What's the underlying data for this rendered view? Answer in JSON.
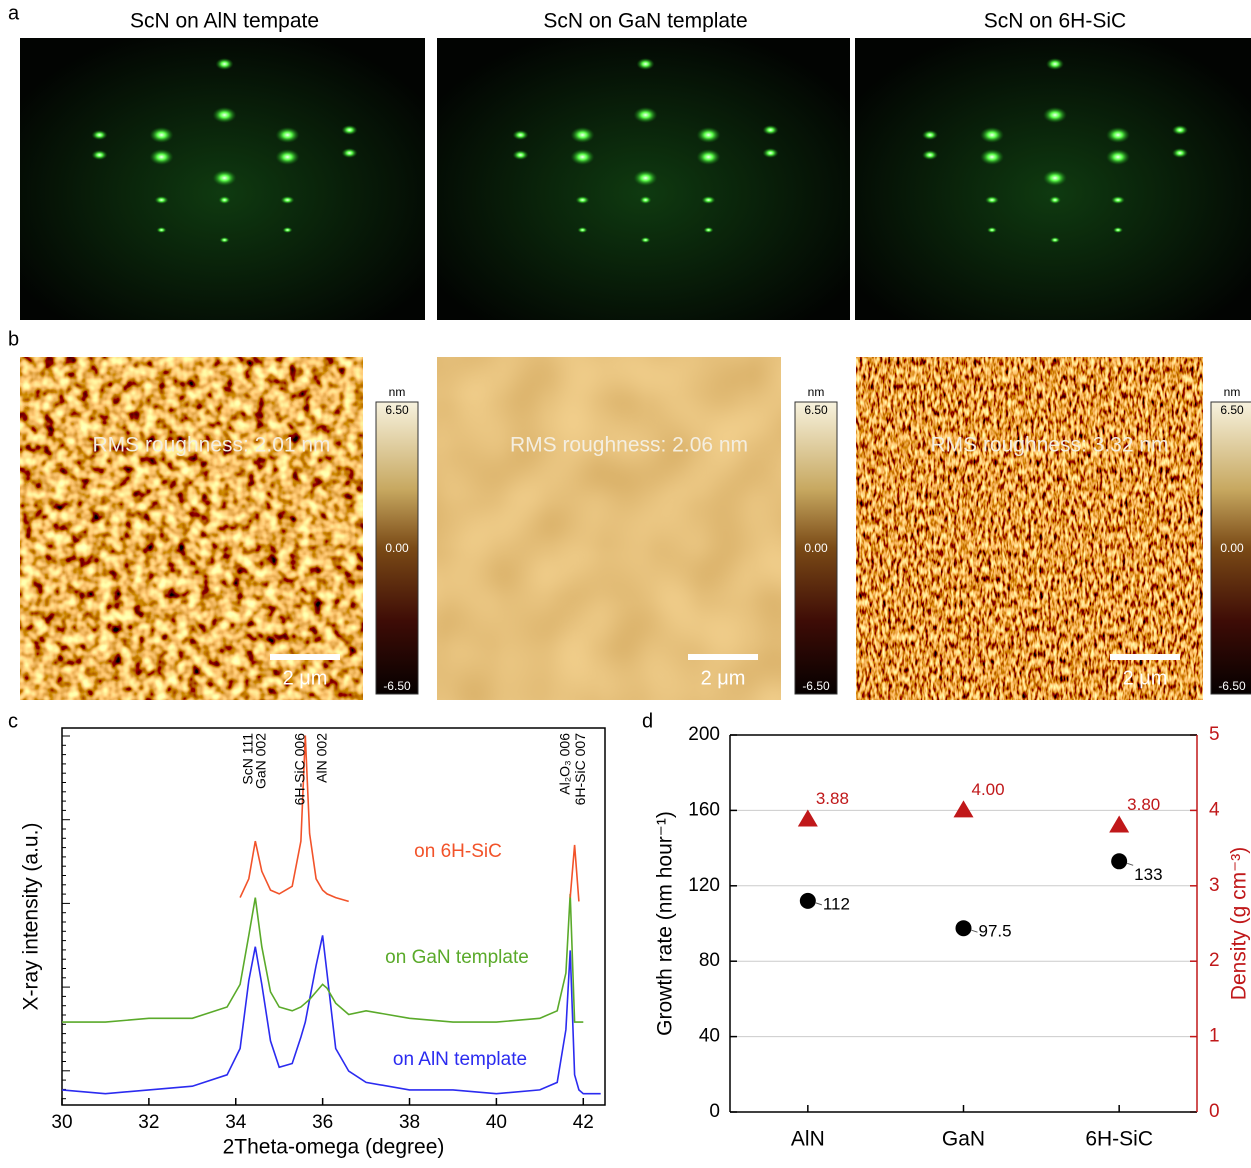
{
  "panels": {
    "a": {
      "label": "a",
      "titles": [
        "ScN on AlN tempate",
        "ScN on GaN template",
        "ScN on 6H-SiC"
      ]
    },
    "b": {
      "label": "b",
      "images": [
        {
          "rms": "RMS roughness: 2.01 nm",
          "scale": "2 μm"
        },
        {
          "rms": "RMS roughness: 2.06 nm",
          "scale": "2 μm"
        },
        {
          "rms": "RMS roughness: 3.32 nm",
          "scale": "2 μm"
        }
      ],
      "colorbar": {
        "unit": "nm",
        "ticks": [
          "6.50",
          "0.00",
          "-6.50"
        ]
      }
    }
  },
  "chart_data": [
    {
      "type": "line",
      "label": "c",
      "xlabel": "2Theta-omega (degree)",
      "ylabel": "X-ray intensity (a.u.)",
      "xlim": [
        30,
        42.5
      ],
      "xticks": [
        30,
        32,
        34,
        36,
        38,
        40,
        42
      ],
      "ylim": [
        0,
        100
      ],
      "x": [
        30,
        31,
        32,
        33,
        33.8,
        34.1,
        34.3,
        34.45,
        34.6,
        34.8,
        35.0,
        35.3,
        35.5,
        35.6,
        35.7,
        35.85,
        36.0,
        36.1,
        36.3,
        36.6,
        37,
        38,
        39,
        40,
        41,
        41.4,
        41.6,
        41.7,
        41.8,
        41.9,
        42.0,
        42.4
      ],
      "series": [
        {
          "name": "on AlN template",
          "color": "#2b2bf0",
          "values": [
            4,
            3,
            4,
            5,
            8,
            15,
            33,
            42,
            32,
            17,
            10,
            11,
            18,
            22,
            28,
            37,
            45,
            35,
            15,
            9,
            6,
            4,
            4,
            3,
            4,
            6,
            20,
            41,
            8,
            4,
            3,
            3
          ]
        },
        {
          "name": "on GaN template",
          "color": "#5aaa2a",
          "values": [
            22,
            22,
            23,
            23,
            26,
            32,
            45,
            55,
            42,
            30,
            26,
            25,
            26,
            27,
            28,
            30,
            32,
            31,
            27,
            24,
            25,
            23,
            22,
            22,
            23,
            25,
            35,
            56,
            22,
            22,
            22,
            null
          ]
        },
        {
          "name": "on 6H-SiC",
          "color": "#f2532a",
          "values": [
            null,
            null,
            null,
            null,
            null,
            55,
            60,
            70,
            62,
            57,
            56,
            58,
            70,
            98,
            72,
            60,
            57,
            56,
            55,
            54,
            null,
            null,
            null,
            null,
            null,
            null,
            null,
            55,
            69,
            54,
            null,
            null
          ]
        }
      ],
      "annotations": [
        {
          "text": "ScN 111",
          "x": 34.3
        },
        {
          "text": "GaN 002",
          "x": 34.6
        },
        {
          "text": "6H-SiC 006",
          "x": 35.5
        },
        {
          "text": "AlN 002",
          "x": 36.0
        },
        {
          "text": "Al₂O₃ 006",
          "x": 41.6
        },
        {
          "text": "6H-SiC 007",
          "x": 41.95
        }
      ]
    },
    {
      "type": "scatter",
      "label": "d",
      "categories": [
        "AlN",
        "GaN",
        "6H-SiC"
      ],
      "ylabel": "Growth rate (nm hour⁻¹)",
      "y2label": "Density (g cm⁻³)",
      "ylim": [
        0,
        200
      ],
      "yticks": [
        0,
        40,
        80,
        120,
        160,
        200
      ],
      "y2lim": [
        0,
        5
      ],
      "y2ticks": [
        0,
        1,
        2,
        3,
        4,
        5
      ],
      "grid": true,
      "series": [
        {
          "color": "#000000",
          "marker": "circle",
          "values": [
            112,
            97.5,
            133
          ]
        },
        {
          "color": "#c0181a",
          "marker": "triangle",
          "axis": "y2",
          "values": [
            3.88,
            4.0,
            3.8
          ],
          "value_labels": [
            "3.88",
            "4.00",
            "3.80"
          ]
        }
      ]
    }
  ]
}
